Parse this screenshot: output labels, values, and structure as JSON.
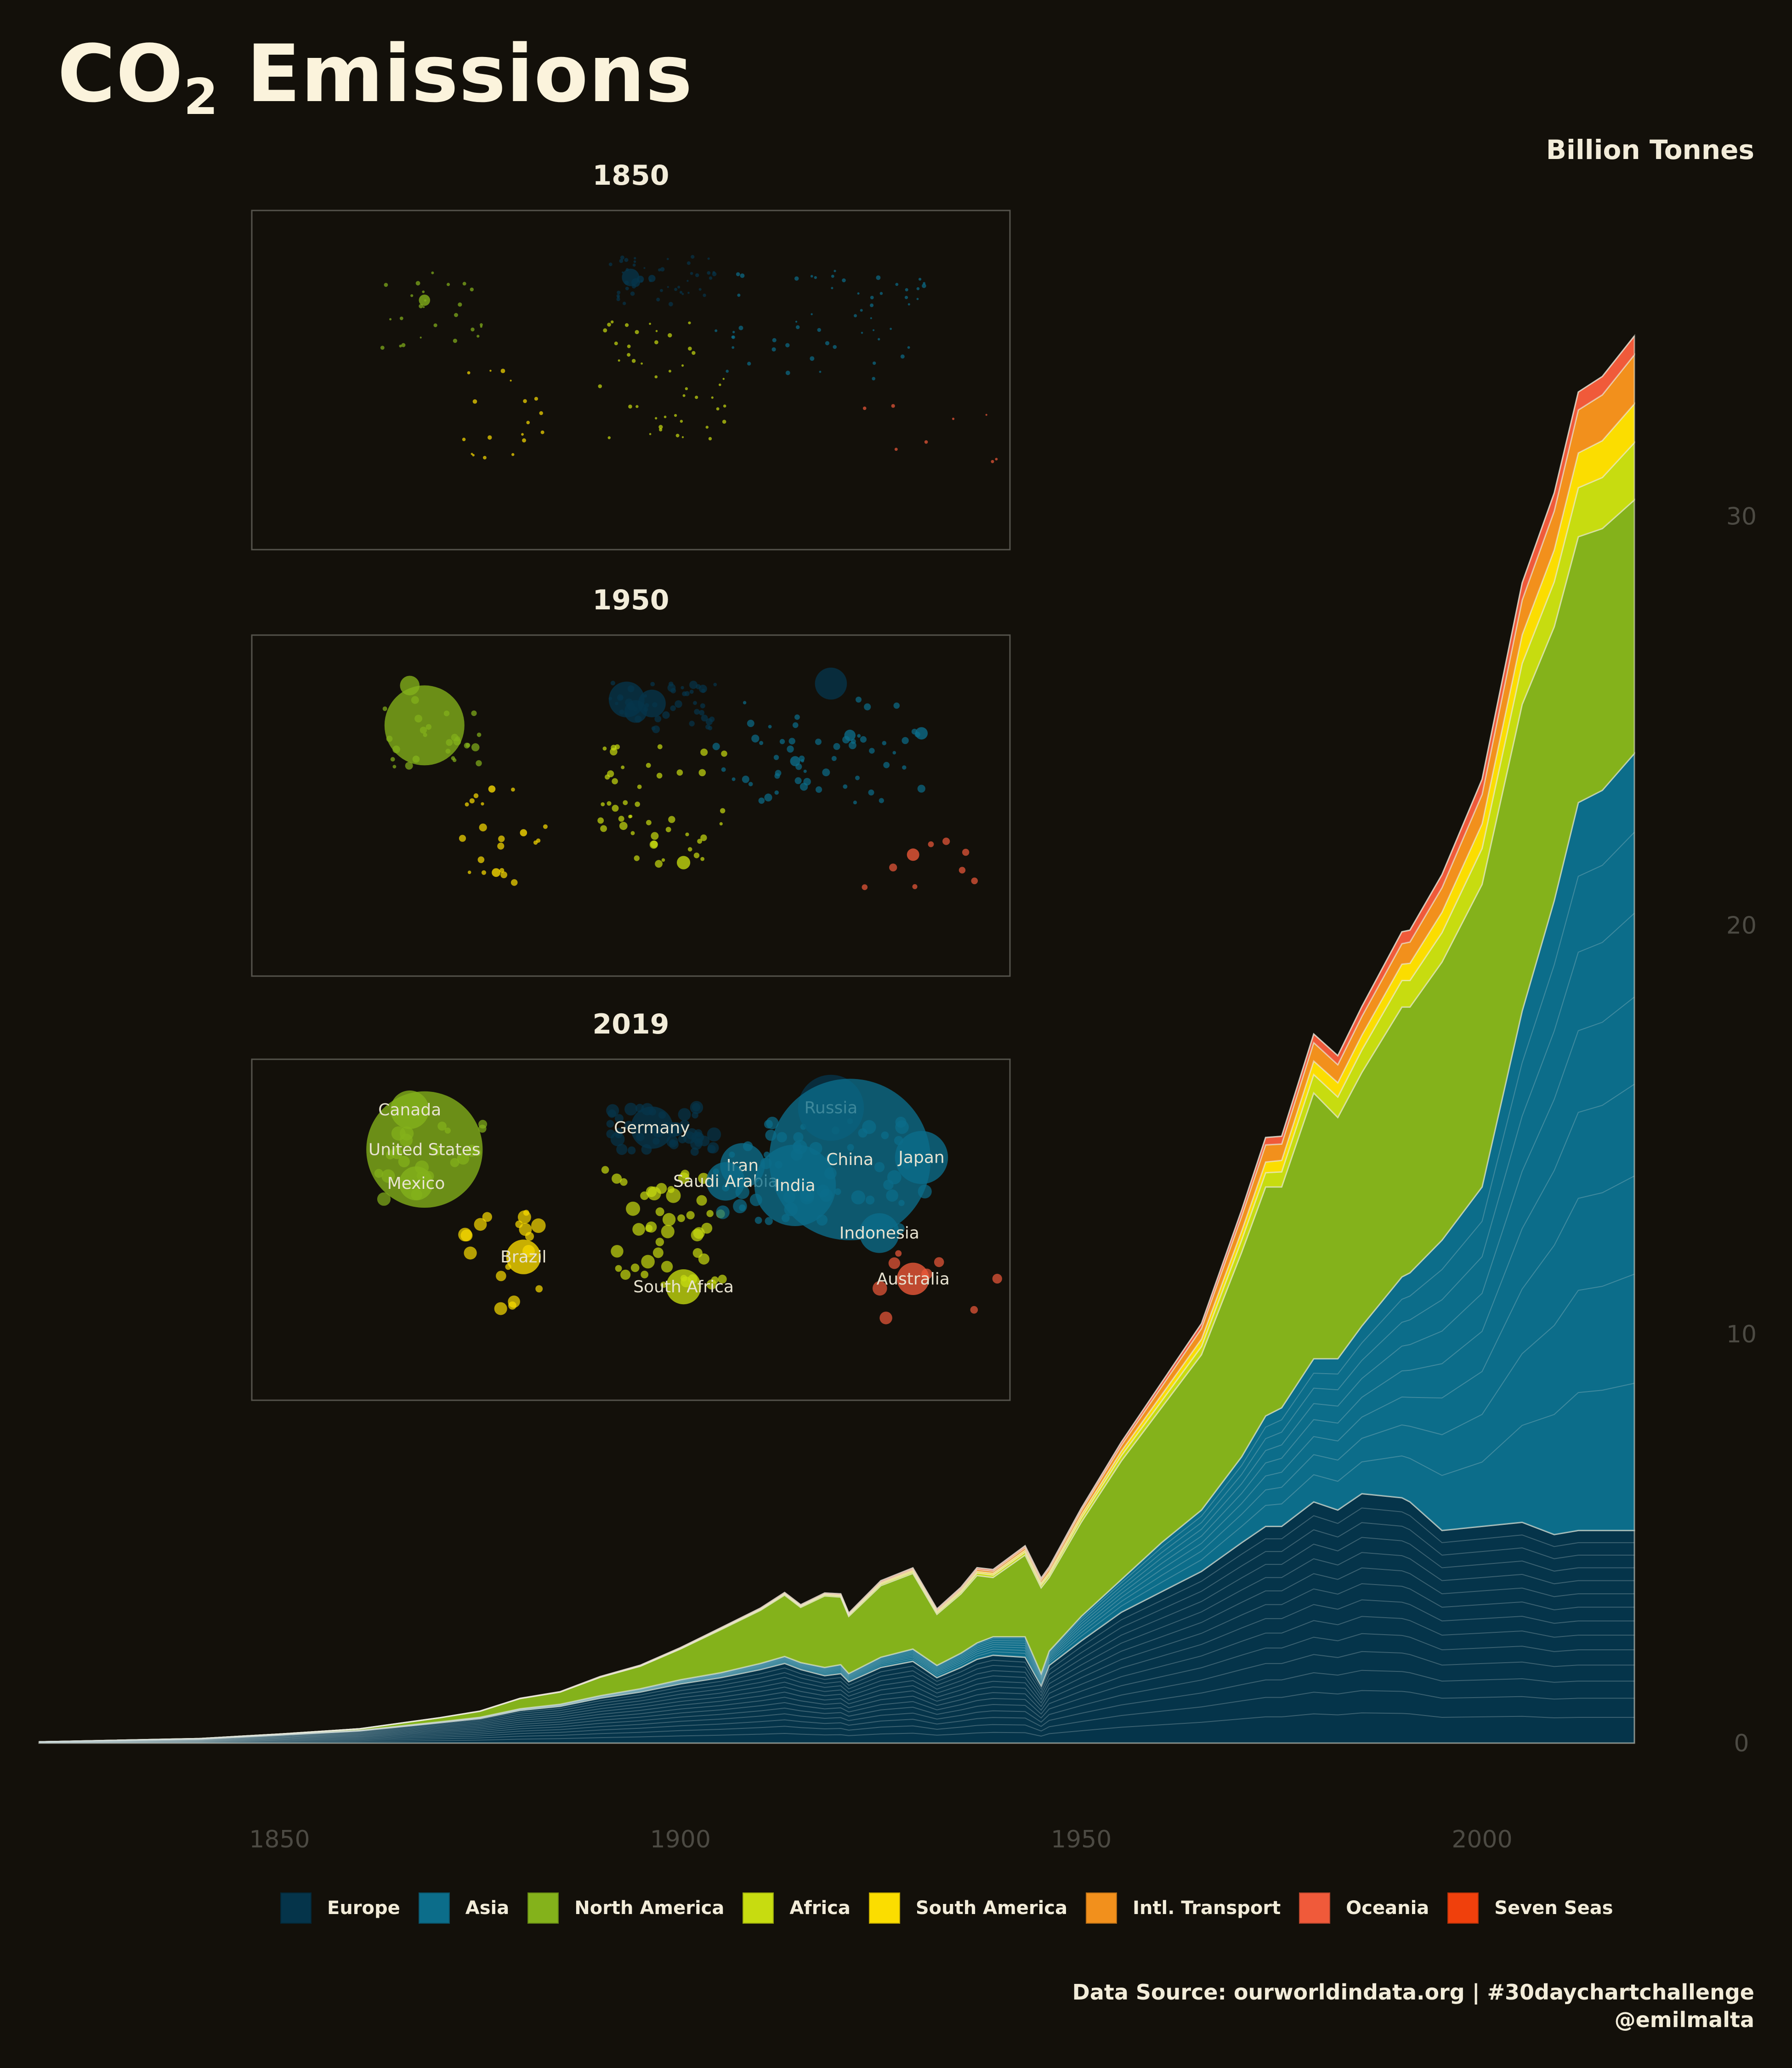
{
  "title": {
    "main": "CO",
    "subscript": "2",
    "rest": " Emissions"
  },
  "unit_label": "Billion Tonnes",
  "source": {
    "line1": "Data Source: ourworldindata.org | #30daychartchallenge",
    "line2": "@emilmalta"
  },
  "colors": {
    "background": "#13100a",
    "Europe": "#05344a",
    "Asia": "#0c6d8a",
    "North America": "#84b21b",
    "Africa": "#c7dc10",
    "South America": "#fbdd00",
    "Intl. Transport": "#f2901c",
    "Oceania": "#f05a3a",
    "Seven Seas": "#f0400c"
  },
  "chart_data": [
    {
      "type": "area",
      "stacked": true,
      "ylabel": "Billion Tonnes",
      "xlim": [
        1820,
        2019
      ],
      "ylim": [
        0,
        36.4
      ],
      "x_ticks": [
        1850,
        1900,
        1950,
        2000
      ],
      "y_ticks": [
        0,
        10,
        20,
        30
      ],
      "legend_position": "bottom",
      "grid": false,
      "x": [
        1820,
        1840,
        1850,
        1860,
        1870,
        1875,
        1880,
        1885,
        1890,
        1895,
        1900,
        1905,
        1910,
        1913,
        1915,
        1918,
        1920,
        1921,
        1925,
        1929,
        1932,
        1935,
        1937,
        1939,
        1943,
        1945,
        1946,
        1950,
        1955,
        1960,
        1965,
        1970,
        1973,
        1975,
        1979,
        1982,
        1985,
        1990,
        1991,
        1995,
        2000,
        2005,
        2009,
        2012,
        2015,
        2019
      ],
      "series": [
        {
          "name": "Europe",
          "values": [
            0.03,
            0.1,
            0.2,
            0.3,
            0.5,
            0.6,
            0.8,
            0.9,
            1.1,
            1.25,
            1.45,
            1.6,
            1.8,
            1.95,
            1.8,
            1.65,
            1.7,
            1.5,
            1.85,
            2.0,
            1.6,
            1.85,
            2.05,
            2.15,
            2.1,
            1.4,
            1.9,
            2.5,
            3.2,
            3.7,
            4.2,
            4.9,
            5.3,
            5.3,
            5.9,
            5.7,
            6.1,
            6.0,
            5.9,
            5.2,
            5.3,
            5.4,
            5.1,
            5.2,
            5.2,
            5.2
          ]
        },
        {
          "name": "Asia",
          "values": [
            0.0,
            0.0,
            0.0,
            0.01,
            0.02,
            0.03,
            0.04,
            0.05,
            0.06,
            0.08,
            0.1,
            0.12,
            0.15,
            0.17,
            0.17,
            0.2,
            0.22,
            0.2,
            0.25,
            0.3,
            0.3,
            0.35,
            0.4,
            0.45,
            0.5,
            0.3,
            0.35,
            0.6,
            0.8,
            1.2,
            1.5,
            2.1,
            2.7,
            2.9,
            3.5,
            3.7,
            4.1,
            5.4,
            5.6,
            7.1,
            8.3,
            12.5,
            15.5,
            17.8,
            18.1,
            19.0
          ]
        },
        {
          "name": "North America",
          "values": [
            0.0,
            0.01,
            0.02,
            0.04,
            0.1,
            0.15,
            0.25,
            0.3,
            0.45,
            0.55,
            0.75,
            1.05,
            1.3,
            1.5,
            1.35,
            1.75,
            1.65,
            1.4,
            1.75,
            1.85,
            1.25,
            1.45,
            1.65,
            1.45,
            2.0,
            2.1,
            1.8,
            2.3,
            2.9,
            3.3,
            3.8,
            5.0,
            5.6,
            5.4,
            6.5,
            5.9,
            6.2,
            6.6,
            6.5,
            6.8,
            7.4,
            7.5,
            6.7,
            6.5,
            6.4,
            6.2
          ]
        },
        {
          "name": "Africa",
          "values": [
            0.0,
            0.0,
            0.0,
            0.0,
            0.0,
            0.0,
            0.0,
            0.0,
            0.005,
            0.01,
            0.015,
            0.02,
            0.02,
            0.025,
            0.025,
            0.03,
            0.03,
            0.03,
            0.04,
            0.04,
            0.04,
            0.05,
            0.06,
            0.06,
            0.07,
            0.07,
            0.07,
            0.1,
            0.13,
            0.16,
            0.2,
            0.3,
            0.35,
            0.37,
            0.45,
            0.5,
            0.55,
            0.65,
            0.65,
            0.72,
            0.88,
            1.0,
            1.1,
            1.2,
            1.25,
            1.4
          ]
        },
        {
          "name": "South America",
          "values": [
            0.0,
            0.0,
            0.0,
            0.0,
            0.0,
            0.0,
            0.0,
            0.0,
            0.002,
            0.004,
            0.006,
            0.01,
            0.015,
            0.018,
            0.018,
            0.02,
            0.025,
            0.025,
            0.03,
            0.035,
            0.03,
            0.035,
            0.04,
            0.045,
            0.05,
            0.05,
            0.06,
            0.08,
            0.11,
            0.15,
            0.18,
            0.22,
            0.26,
            0.28,
            0.33,
            0.35,
            0.36,
            0.4,
            0.42,
            0.5,
            0.6,
            0.7,
            0.78,
            0.85,
            0.9,
            0.95
          ]
        },
        {
          "name": "Intl. Transport",
          "values": [
            0.0,
            0.0,
            0.0,
            0.0,
            0.0,
            0.0,
            0.0,
            0.0,
            0.0,
            0.0,
            0.0,
            0.0,
            0.0,
            0.0,
            0.0,
            0.0,
            0.0,
            0.0,
            0.02,
            0.03,
            0.03,
            0.04,
            0.05,
            0.05,
            0.06,
            0.07,
            0.08,
            0.1,
            0.14,
            0.2,
            0.26,
            0.36,
            0.42,
            0.4,
            0.45,
            0.44,
            0.46,
            0.5,
            0.52,
            0.6,
            0.72,
            0.85,
            0.95,
            1.05,
            1.12,
            1.2
          ]
        },
        {
          "name": "Oceania",
          "values": [
            0.0,
            0.0,
            0.0,
            0.0,
            0.002,
            0.003,
            0.005,
            0.007,
            0.01,
            0.01,
            0.012,
            0.015,
            0.018,
            0.02,
            0.02,
            0.02,
            0.025,
            0.025,
            0.03,
            0.03,
            0.03,
            0.035,
            0.04,
            0.04,
            0.045,
            0.045,
            0.05,
            0.06,
            0.08,
            0.1,
            0.12,
            0.15,
            0.18,
            0.19,
            0.21,
            0.22,
            0.24,
            0.29,
            0.29,
            0.32,
            0.37,
            0.42,
            0.44,
            0.44,
            0.45,
            0.46
          ]
        },
        {
          "name": "Seven Seas",
          "values": [
            0.0,
            0.0,
            0.0,
            0.0,
            0.0,
            0.0,
            0.0,
            0.0,
            0.0,
            0.0,
            0.0,
            0.0,
            0.0,
            0.0,
            0.0,
            0.0,
            0.0,
            0.0,
            0.0,
            0.0,
            0.0,
            0.0,
            0.0,
            0.0,
            0.0,
            0.0,
            0.0,
            0.0,
            0.0,
            0.0,
            0.0,
            0.0,
            0.0,
            0.0,
            0.0,
            0.0,
            0.0,
            0.0,
            0.0,
            0.0,
            0.0,
            0.0,
            0.0,
            0.0,
            0.0,
            0.0
          ]
        }
      ]
    },
    {
      "type": "scatter",
      "title": "1850",
      "description": "bubble map of country emissions",
      "points": []
    },
    {
      "type": "scatter",
      "title": "1950",
      "points": []
    },
    {
      "type": "scatter",
      "title": "2019",
      "labelled_countries": [
        "Canada",
        "Russia",
        "United States",
        "Germany",
        "China",
        "Japan",
        "Iran",
        "Saudi Arabia",
        "India",
        "Mexico",
        "Indonesia",
        "Brazil",
        "South Africa",
        "Australia"
      ]
    }
  ],
  "maps": [
    {
      "year": "1850",
      "points": [
        {
          "lon": -98,
          "lat": 40,
          "v": 0.05,
          "region": "North America"
        },
        {
          "lon": -0.1,
          "lat": 51.5,
          "v": 0.12,
          "region": "Europe"
        },
        {
          "lon": 10,
          "lat": 51,
          "v": 0.02,
          "region": "Europe"
        },
        {
          "lon": 2.3,
          "lat": 48.9,
          "v": 0.03,
          "region": "Europe"
        },
        {
          "lon": 4.5,
          "lat": 50.6,
          "v": 0.02,
          "region": "Europe"
        }
      ]
    },
    {
      "year": "1950",
      "points": [
        {
          "lon": -98,
          "lat": 40,
          "v": 2.5,
          "region": "North America",
          "label": ""
        },
        {
          "lon": -105,
          "lat": 60,
          "v": 0.15,
          "region": "North America"
        },
        {
          "lon": -102,
          "lat": 23,
          "v": 0.02,
          "region": "North America"
        },
        {
          "lon": 95,
          "lat": 61,
          "v": 0.4,
          "region": "Europe"
        },
        {
          "lon": -2,
          "lat": 53,
          "v": 0.5,
          "region": "Europe"
        },
        {
          "lon": 10,
          "lat": 51,
          "v": 0.3,
          "region": "Europe"
        },
        {
          "lon": 2.3,
          "lat": 47,
          "v": 0.2,
          "region": "Europe"
        },
        {
          "lon": 138,
          "lat": 36,
          "v": 0.06,
          "region": "Asia"
        },
        {
          "lon": 104,
          "lat": 35,
          "v": 0.05,
          "region": "Asia"
        },
        {
          "lon": 78,
          "lat": 22,
          "v": 0.04,
          "region": "Asia"
        },
        {
          "lon": 25,
          "lat": -29,
          "v": 0.07,
          "region": "Africa"
        },
        {
          "lon": 134,
          "lat": -25,
          "v": 0.06,
          "region": "Oceania"
        },
        {
          "lon": -64,
          "lat": -34,
          "v": 0.03,
          "region": "South America"
        },
        {
          "lon": -51,
          "lat": -14,
          "v": 0.02,
          "region": "South America"
        },
        {
          "lon": -66,
          "lat": 8,
          "v": 0.02,
          "region": "South America"
        }
      ]
    },
    {
      "year": "2019",
      "points": [
        {
          "lon": -98,
          "lat": 40,
          "v": 5.3,
          "region": "North America",
          "label": "United States"
        },
        {
          "lon": -105,
          "lat": 60,
          "v": 0.58,
          "region": "North America",
          "label": "Canada"
        },
        {
          "lon": -102,
          "lat": 23,
          "v": 0.45,
          "region": "North America",
          "label": "Mexico"
        },
        {
          "lon": 95,
          "lat": 61,
          "v": 1.7,
          "region": "Europe",
          "label": "Russia"
        },
        {
          "lon": 10,
          "lat": 51,
          "v": 0.7,
          "region": "Europe",
          "label": "Germany"
        },
        {
          "lon": 104,
          "lat": 35,
          "v": 10.2,
          "region": "Asia",
          "label": "China"
        },
        {
          "lon": 138,
          "lat": 36,
          "v": 1.1,
          "region": "Asia",
          "label": "Japan"
        },
        {
          "lon": 53,
          "lat": 32,
          "v": 0.78,
          "region": "Asia",
          "label": "Iran"
        },
        {
          "lon": 45,
          "lat": 24,
          "v": 0.58,
          "region": "Asia",
          "label": "Saudi Arabia"
        },
        {
          "lon": 78,
          "lat": 22,
          "v": 2.6,
          "region": "Asia",
          "label": "India"
        },
        {
          "lon": 118,
          "lat": -2,
          "v": 0.62,
          "region": "Asia",
          "label": "Indonesia"
        },
        {
          "lon": -51,
          "lat": -14,
          "v": 0.47,
          "region": "South America",
          "label": "Brazil"
        },
        {
          "lon": 25,
          "lat": -29,
          "v": 0.48,
          "region": "Africa",
          "label": "South Africa"
        },
        {
          "lon": 134,
          "lat": -25,
          "v": 0.41,
          "region": "Oceania",
          "label": "Australia"
        }
      ]
    }
  ],
  "legend": [
    "Europe",
    "Asia",
    "North America",
    "Africa",
    "South America",
    "Intl. Transport",
    "Oceania",
    "Seven Seas"
  ]
}
